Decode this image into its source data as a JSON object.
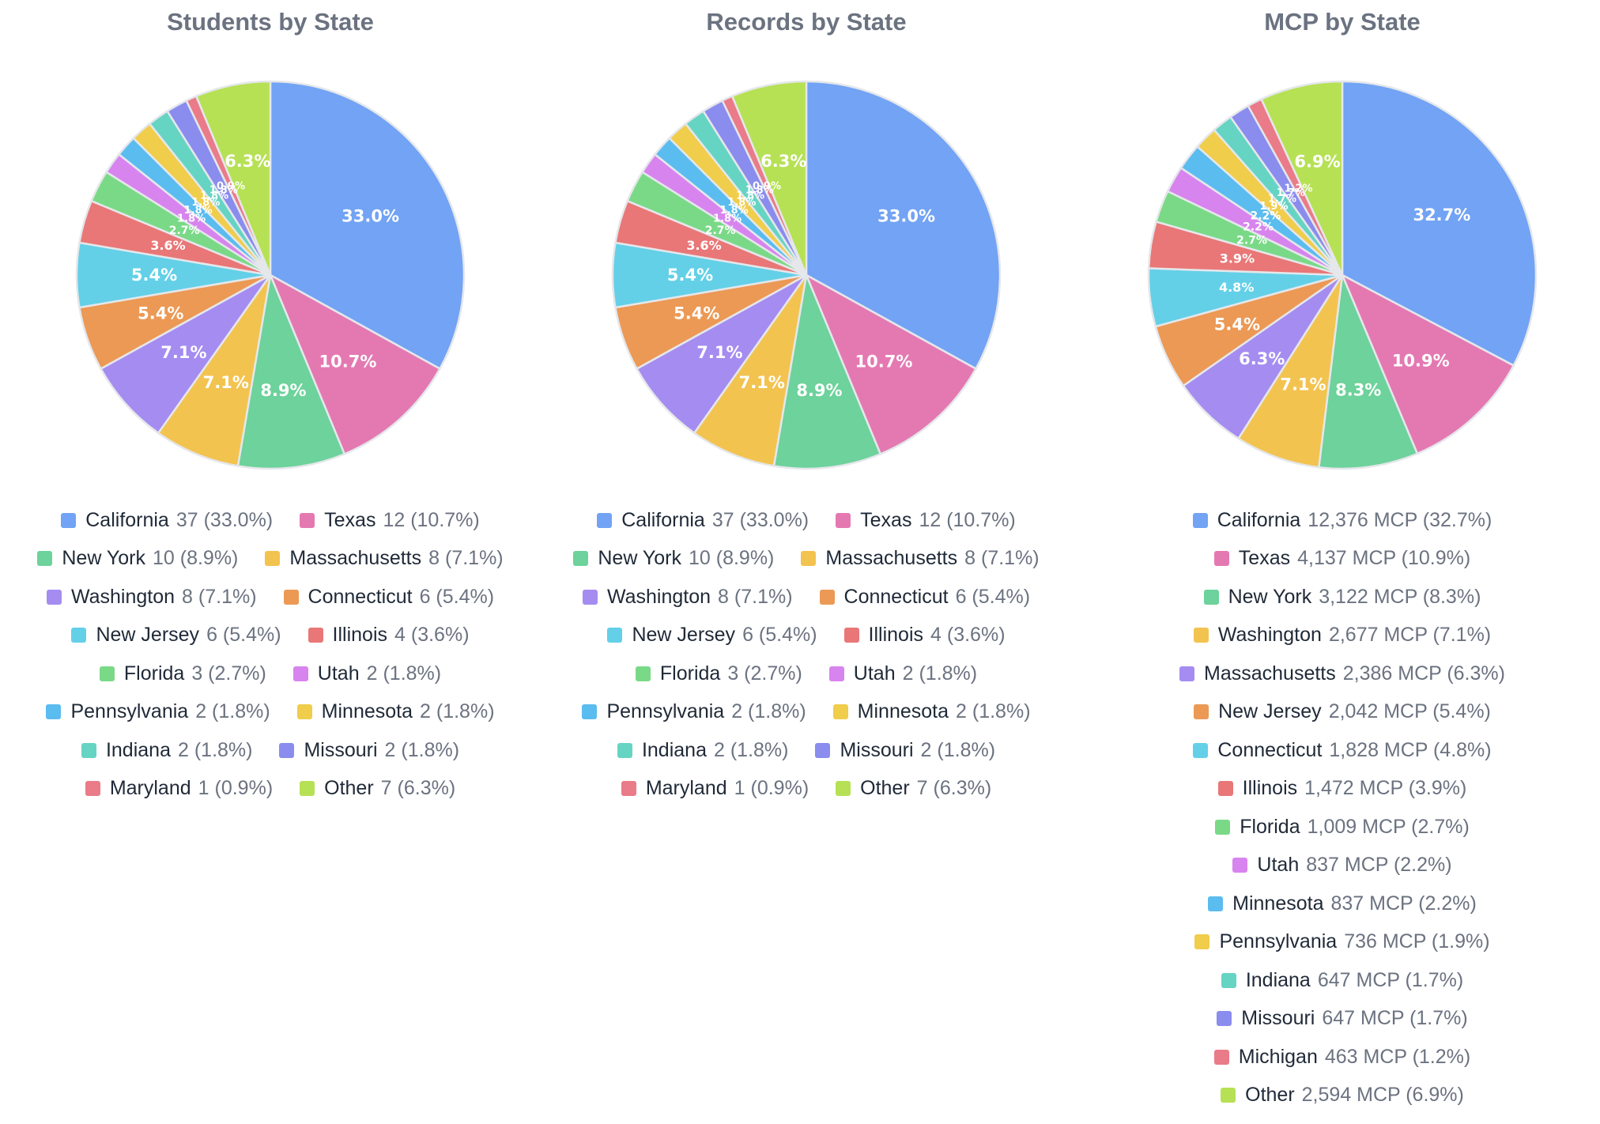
{
  "chart_data": [
    {
      "type": "pie",
      "title": "Students by State",
      "slices": [
        {
          "name": "California",
          "value": 37,
          "pct": "33.0%",
          "color": "#72a3f4"
        },
        {
          "name": "Texas",
          "value": 12,
          "pct": "10.7%",
          "color": "#e479b2"
        },
        {
          "name": "New York",
          "value": 10,
          "pct": "8.9%",
          "color": "#6dd29b"
        },
        {
          "name": "Massachusetts",
          "value": 8,
          "pct": "7.1%",
          "color": "#f3c350"
        },
        {
          "name": "Washington",
          "value": 8,
          "pct": "7.1%",
          "color": "#a58cf1"
        },
        {
          "name": "Connecticut",
          "value": 6,
          "pct": "5.4%",
          "color": "#ec9955"
        },
        {
          "name": "New Jersey",
          "value": 6,
          "pct": "5.4%",
          "color": "#63d0e7"
        },
        {
          "name": "Illinois",
          "value": 4,
          "pct": "3.6%",
          "color": "#e97777"
        },
        {
          "name": "Florida",
          "value": 3,
          "pct": "2.7%",
          "color": "#7ad987"
        },
        {
          "name": "Utah",
          "value": 2,
          "pct": "1.8%",
          "color": "#d784ee"
        },
        {
          "name": "Pennsylvania",
          "value": 2,
          "pct": "1.8%",
          "color": "#5bbcf0"
        },
        {
          "name": "Minnesota",
          "value": 2,
          "pct": "1.8%",
          "color": "#f0cd4b"
        },
        {
          "name": "Indiana",
          "value": 2,
          "pct": "1.8%",
          "color": "#66d4c3"
        },
        {
          "name": "Missouri",
          "value": 2,
          "pct": "1.8%",
          "color": "#8a8cee"
        },
        {
          "name": "Maryland",
          "value": 1,
          "pct": "0.9%",
          "color": "#ea7b89"
        },
        {
          "name": "Other",
          "value": 7,
          "pct": "6.3%",
          "color": "#b6e154"
        }
      ]
    },
    {
      "type": "pie",
      "title": "Records by State",
      "slices": [
        {
          "name": "California",
          "value": 37,
          "pct": "33.0%",
          "color": "#72a3f4"
        },
        {
          "name": "Texas",
          "value": 12,
          "pct": "10.7%",
          "color": "#e479b2"
        },
        {
          "name": "New York",
          "value": 10,
          "pct": "8.9%",
          "color": "#6dd29b"
        },
        {
          "name": "Massachusetts",
          "value": 8,
          "pct": "7.1%",
          "color": "#f3c350"
        },
        {
          "name": "Washington",
          "value": 8,
          "pct": "7.1%",
          "color": "#a58cf1"
        },
        {
          "name": "Connecticut",
          "value": 6,
          "pct": "5.4%",
          "color": "#ec9955"
        },
        {
          "name": "New Jersey",
          "value": 6,
          "pct": "5.4%",
          "color": "#63d0e7"
        },
        {
          "name": "Illinois",
          "value": 4,
          "pct": "3.6%",
          "color": "#e97777"
        },
        {
          "name": "Florida",
          "value": 3,
          "pct": "2.7%",
          "color": "#7ad987"
        },
        {
          "name": "Utah",
          "value": 2,
          "pct": "1.8%",
          "color": "#d784ee"
        },
        {
          "name": "Pennsylvania",
          "value": 2,
          "pct": "1.8%",
          "color": "#5bbcf0"
        },
        {
          "name": "Minnesota",
          "value": 2,
          "pct": "1.8%",
          "color": "#f0cd4b"
        },
        {
          "name": "Indiana",
          "value": 2,
          "pct": "1.8%",
          "color": "#66d4c3"
        },
        {
          "name": "Missouri",
          "value": 2,
          "pct": "1.8%",
          "color": "#8a8cee"
        },
        {
          "name": "Maryland",
          "value": 1,
          "pct": "0.9%",
          "color": "#ea7b89"
        },
        {
          "name": "Other",
          "value": 7,
          "pct": "6.3%",
          "color": "#b6e154"
        }
      ]
    },
    {
      "type": "pie",
      "title": "MCP by State",
      "value_suffix": " MCP",
      "slices": [
        {
          "name": "California",
          "value": 12376,
          "pct": "32.7%",
          "color": "#72a3f4"
        },
        {
          "name": "Texas",
          "value": 4137,
          "pct": "10.9%",
          "color": "#e479b2"
        },
        {
          "name": "New York",
          "value": 3122,
          "pct": "8.3%",
          "color": "#6dd29b"
        },
        {
          "name": "Washington",
          "value": 2677,
          "pct": "7.1%",
          "color": "#f3c350"
        },
        {
          "name": "Massachusetts",
          "value": 2386,
          "pct": "6.3%",
          "color": "#a58cf1"
        },
        {
          "name": "New Jersey",
          "value": 2042,
          "pct": "5.4%",
          "color": "#ec9955"
        },
        {
          "name": "Connecticut",
          "value": 1828,
          "pct": "4.8%",
          "color": "#63d0e7"
        },
        {
          "name": "Illinois",
          "value": 1472,
          "pct": "3.9%",
          "color": "#e97777"
        },
        {
          "name": "Florida",
          "value": 1009,
          "pct": "2.7%",
          "color": "#7ad987"
        },
        {
          "name": "Utah",
          "value": 837,
          "pct": "2.2%",
          "color": "#d784ee"
        },
        {
          "name": "Minnesota",
          "value": 837,
          "pct": "2.2%",
          "color": "#5bbcf0"
        },
        {
          "name": "Pennsylvania",
          "value": 736,
          "pct": "1.9%",
          "color": "#f0cd4b"
        },
        {
          "name": "Indiana",
          "value": 647,
          "pct": "1.7%",
          "color": "#66d4c3"
        },
        {
          "name": "Missouri",
          "value": 647,
          "pct": "1.7%",
          "color": "#8a8cee"
        },
        {
          "name": "Michigan",
          "value": 463,
          "pct": "1.2%",
          "color": "#ea7b89"
        },
        {
          "name": "Other",
          "value": 2594,
          "pct": "6.9%",
          "color": "#b6e154"
        }
      ]
    }
  ]
}
